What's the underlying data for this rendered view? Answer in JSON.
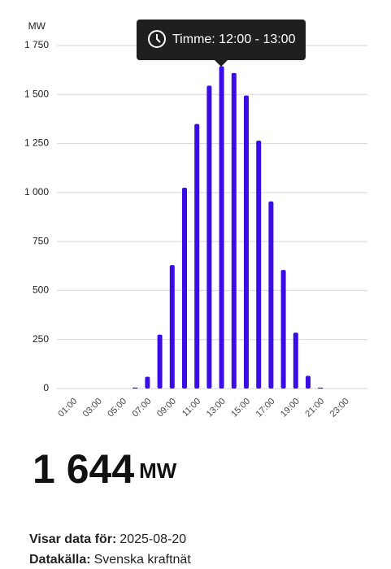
{
  "chart_data": {
    "type": "bar",
    "y_label": "MW",
    "tooltip": "Timme: 12:00 - 13:00",
    "categories": [
      null,
      "01:00",
      null,
      "03:00",
      null,
      "05:00",
      null,
      "07:00",
      null,
      "09:00",
      null,
      "11:00",
      null,
      "13:00",
      null,
      "15:00",
      null,
      "17:00",
      null,
      "19:00",
      null,
      "21:00",
      null,
      "23:00"
    ],
    "values": [
      0,
      0,
      0,
      0,
      0,
      0,
      5,
      60,
      275,
      630,
      1025,
      1350,
      1545,
      1644,
      1610,
      1495,
      1265,
      955,
      605,
      285,
      65,
      5,
      0,
      0
    ],
    "color": "#3a0de6",
    "ylim": [
      0,
      1750
    ],
    "yticks": [
      0,
      250,
      500,
      750,
      {
        "value": 1000,
        "label": "1 000"
      },
      {
        "value": 1250,
        "label": "1 250"
      },
      {
        "value": 1500,
        "label": "1 500"
      },
      {
        "value": 1750,
        "label": "1 750"
      }
    ],
    "grid": true
  },
  "current": {
    "label": "1 644",
    "unit": "MW"
  },
  "footer": {
    "date_label": "Visar data för:",
    "date": "2025-08-20",
    "source_label": "Datakälla:",
    "source": "Svenska kraftnät"
  }
}
